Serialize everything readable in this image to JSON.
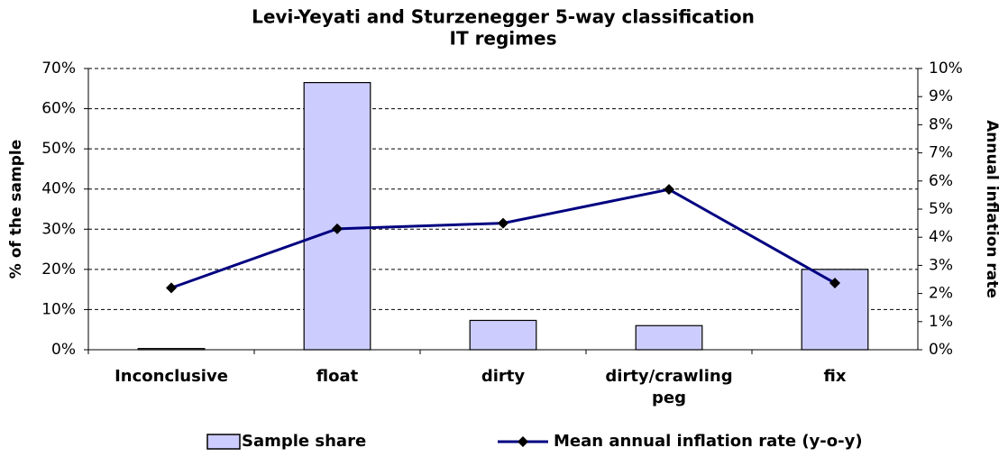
{
  "chart_data": {
    "type": "bar-line",
    "title": "Levi-Yeyati and Sturzenegger 5-way classification",
    "subtitle": "IT regimes",
    "ylabel": "% of the sample",
    "y2label": "Annual inflation rate",
    "categories": [
      "Inconclusive",
      "float",
      "dirty",
      "dirty/crawling peg",
      "fix"
    ],
    "series": [
      {
        "name": "Sample share",
        "type": "bar",
        "color": "#ccccff",
        "values": [
          0.3,
          66.5,
          7.3,
          6.0,
          20.0
        ]
      },
      {
        "name": "Mean annual inflation rate (y-o-y)",
        "type": "line",
        "axis": "y2",
        "color": "#000080",
        "values": [
          2.2,
          4.3,
          4.5,
          5.7,
          2.37
        ]
      }
    ],
    "ylim": [
      0,
      70
    ],
    "yticks": [
      {
        "value": 0,
        "label": "0%"
      },
      {
        "value": 10,
        "label": "10%"
      },
      {
        "value": 20,
        "label": "20%"
      },
      {
        "value": 30,
        "label": "30%"
      },
      {
        "value": 40,
        "label": "40%"
      },
      {
        "value": 50,
        "label": "50%"
      },
      {
        "value": 60,
        "label": "60%"
      },
      {
        "value": 70,
        "label": "70%"
      }
    ],
    "y2lim": [
      0,
      10
    ],
    "y2ticks": [
      {
        "value": 0,
        "label": "0%"
      },
      {
        "value": 1,
        "label": "1%"
      },
      {
        "value": 2,
        "label": "2%"
      },
      {
        "value": 3,
        "label": "3%"
      },
      {
        "value": 4,
        "label": "4%"
      },
      {
        "value": 5,
        "label": "5%"
      },
      {
        "value": 6,
        "label": "6%"
      },
      {
        "value": 7,
        "label": "7%"
      },
      {
        "value": 8,
        "label": "8%"
      },
      {
        "value": 9,
        "label": "9%"
      },
      {
        "value": 10,
        "label": "10%"
      }
    ],
    "grid": true,
    "legend": "bottom"
  }
}
